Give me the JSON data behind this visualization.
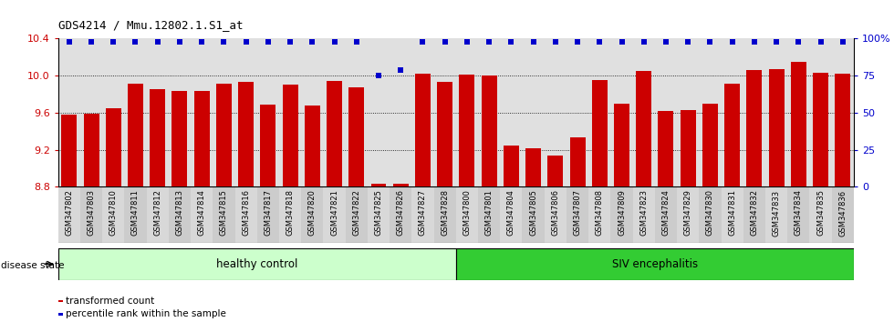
{
  "title": "GDS4214 / Mmu.12802.1.S1_at",
  "samples": [
    "GSM347802",
    "GSM347803",
    "GSM347810",
    "GSM347811",
    "GSM347812",
    "GSM347813",
    "GSM347814",
    "GSM347815",
    "GSM347816",
    "GSM347817",
    "GSM347818",
    "GSM347820",
    "GSM347821",
    "GSM347822",
    "GSM347825",
    "GSM347826",
    "GSM347827",
    "GSM347828",
    "GSM347800",
    "GSM347801",
    "GSM347804",
    "GSM347805",
    "GSM347806",
    "GSM347807",
    "GSM347808",
    "GSM347809",
    "GSM347823",
    "GSM347824",
    "GSM347829",
    "GSM347830",
    "GSM347831",
    "GSM347832",
    "GSM347833",
    "GSM347834",
    "GSM347835",
    "GSM347836"
  ],
  "bar_values": [
    9.58,
    9.59,
    9.65,
    9.91,
    9.85,
    9.83,
    9.83,
    9.91,
    9.93,
    9.69,
    9.9,
    9.68,
    9.94,
    9.87,
    8.83,
    8.83,
    10.02,
    9.93,
    10.01,
    10.0,
    9.25,
    9.22,
    9.14,
    9.33,
    9.95,
    9.7,
    10.05,
    9.62,
    9.63,
    9.7,
    9.91,
    10.06,
    10.07,
    10.15,
    10.03,
    10.02
  ],
  "percentile_values": [
    98,
    98,
    98,
    98,
    98,
    98,
    98,
    98,
    98,
    98,
    98,
    98,
    98,
    98,
    75,
    79,
    98,
    98,
    98,
    98,
    98,
    98,
    98,
    98,
    98,
    98,
    98,
    98,
    98,
    98,
    98,
    98,
    98,
    98,
    98,
    98
  ],
  "bar_color": "#cc0000",
  "percentile_color": "#0000cc",
  "ylim_left": [
    8.8,
    10.4
  ],
  "ylim_right": [
    0,
    100
  ],
  "yticks_left": [
    8.8,
    9.2,
    9.6,
    10.0,
    10.4
  ],
  "yticks_right": [
    0,
    25,
    50,
    75,
    100
  ],
  "ytick_labels_right": [
    "0",
    "25",
    "50",
    "75",
    "100%"
  ],
  "n_healthy": 18,
  "n_siv": 18,
  "healthy_label": "healthy control",
  "siv_label": "SIV encephalitis",
  "healthy_color": "#ccffcc",
  "siv_color": "#33cc33",
  "legend_bar_label": "transformed count",
  "legend_pct_label": "percentile rank within the sample",
  "disease_state_label": "disease state",
  "bg_color": "#e0e0e0",
  "xtick_bg": "#d0d0d0",
  "grid_dotted_vals": [
    9.2,
    9.6,
    10.0
  ]
}
